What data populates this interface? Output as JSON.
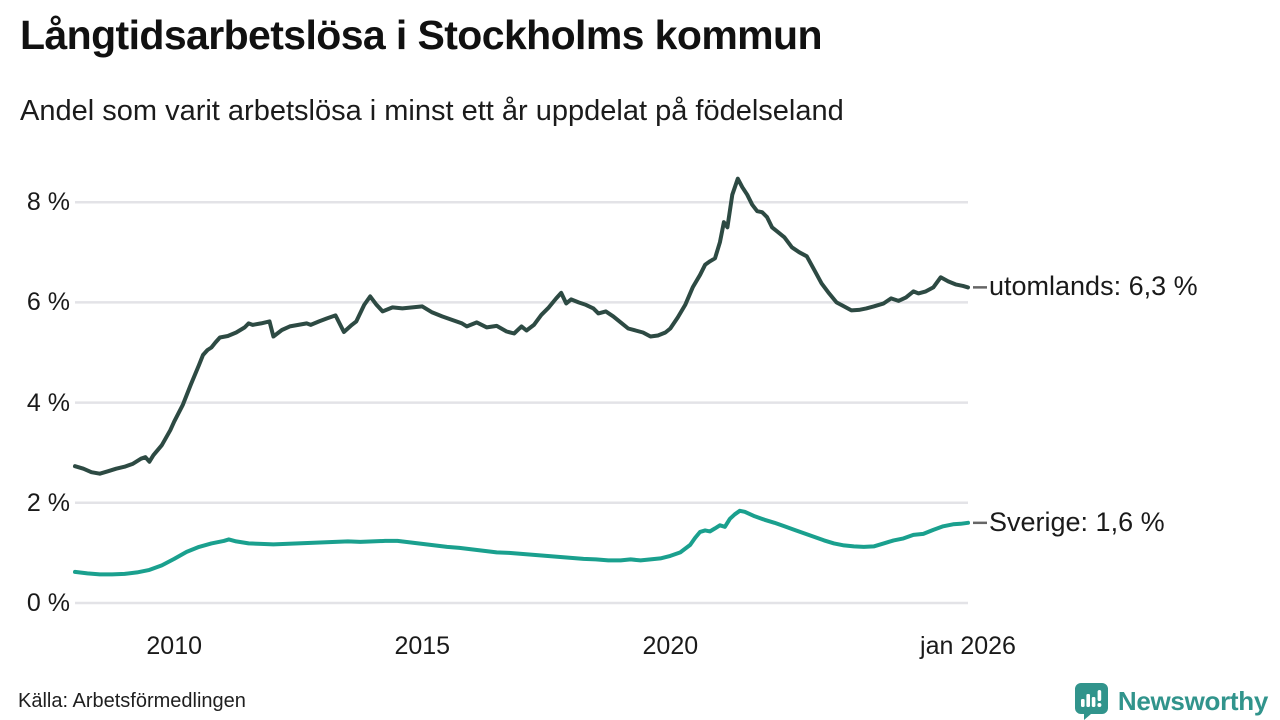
{
  "header": {
    "title": "Långtidsarbetslösa i Stockholms kommun",
    "subtitle": "Andel som varit arbetslösa i minst ett år uppdelat på födelseland"
  },
  "footer": {
    "source": "Källa: Arbetsförmedlingen",
    "brand": "Newsworthy"
  },
  "colors": {
    "utomlands_line": "#2d4a43",
    "sverige_line": "#1aa08e",
    "gridline": "#e3e3e7",
    "label_dash": "#666666",
    "brand_teal": "#31948c",
    "text": "#1a1a1a"
  },
  "chart_data": {
    "type": "line",
    "title": "Långtidsarbetslösa i Stockholms kommun",
    "subtitle": "Andel som varit arbetslösa i minst ett år uppdelat på födelseland",
    "xlabel": "",
    "ylabel": "",
    "grid": "horizontal",
    "legend_position": "right-end-labels",
    "x_range_years": [
      2008,
      2026.08
    ],
    "ylim": [
      0,
      8.6
    ],
    "y_ticks": [
      {
        "value": 0,
        "label": "0 %"
      },
      {
        "value": 2,
        "label": "2 %"
      },
      {
        "value": 4,
        "label": "4 %"
      },
      {
        "value": 6,
        "label": "6 %"
      },
      {
        "value": 8,
        "label": "8 %"
      }
    ],
    "x_ticks": [
      {
        "year": 2010,
        "label": "2010"
      },
      {
        "year": 2015,
        "label": "2015"
      },
      {
        "year": 2020,
        "label": "2020"
      },
      {
        "year": 2026,
        "label": "jan 2026"
      }
    ],
    "series": [
      {
        "name": "utomlands",
        "end_label": "utomlands: 6,3 %",
        "last_value_display": "6,3 %",
        "color": "#2d4a43",
        "points": [
          [
            2008.0,
            2.73
          ],
          [
            2008.17,
            2.68
          ],
          [
            2008.33,
            2.61
          ],
          [
            2008.5,
            2.58
          ],
          [
            2008.67,
            2.63
          ],
          [
            2008.83,
            2.68
          ],
          [
            2009.0,
            2.72
          ],
          [
            2009.17,
            2.78
          ],
          [
            2009.33,
            2.88
          ],
          [
            2009.42,
            2.91
          ],
          [
            2009.5,
            2.82
          ],
          [
            2009.58,
            2.95
          ],
          [
            2009.75,
            3.15
          ],
          [
            2009.92,
            3.45
          ],
          [
            2010.0,
            3.62
          ],
          [
            2010.17,
            3.95
          ],
          [
            2010.33,
            4.35
          ],
          [
            2010.5,
            4.75
          ],
          [
            2010.58,
            4.95
          ],
          [
            2010.67,
            5.05
          ],
          [
            2010.75,
            5.1
          ],
          [
            2010.83,
            5.2
          ],
          [
            2010.92,
            5.3
          ],
          [
            2011.08,
            5.33
          ],
          [
            2011.25,
            5.4
          ],
          [
            2011.42,
            5.5
          ],
          [
            2011.5,
            5.58
          ],
          [
            2011.58,
            5.55
          ],
          [
            2011.75,
            5.58
          ],
          [
            2011.92,
            5.62
          ],
          [
            2012.0,
            5.32
          ],
          [
            2012.17,
            5.45
          ],
          [
            2012.33,
            5.52
          ],
          [
            2012.5,
            5.55
          ],
          [
            2012.67,
            5.58
          ],
          [
            2012.75,
            5.55
          ],
          [
            2012.92,
            5.62
          ],
          [
            2013.08,
            5.68
          ],
          [
            2013.25,
            5.74
          ],
          [
            2013.42,
            5.41
          ],
          [
            2013.58,
            5.55
          ],
          [
            2013.67,
            5.62
          ],
          [
            2013.83,
            5.95
          ],
          [
            2013.95,
            6.12
          ],
          [
            2014.08,
            5.95
          ],
          [
            2014.2,
            5.82
          ],
          [
            2014.4,
            5.9
          ],
          [
            2014.6,
            5.88
          ],
          [
            2014.8,
            5.9
          ],
          [
            2015.0,
            5.92
          ],
          [
            2015.2,
            5.8
          ],
          [
            2015.4,
            5.72
          ],
          [
            2015.6,
            5.65
          ],
          [
            2015.8,
            5.58
          ],
          [
            2015.9,
            5.52
          ],
          [
            2016.1,
            5.6
          ],
          [
            2016.3,
            5.5
          ],
          [
            2016.5,
            5.53
          ],
          [
            2016.7,
            5.42
          ],
          [
            2016.85,
            5.38
          ],
          [
            2017.0,
            5.52
          ],
          [
            2017.1,
            5.44
          ],
          [
            2017.25,
            5.55
          ],
          [
            2017.4,
            5.75
          ],
          [
            2017.55,
            5.9
          ],
          [
            2017.7,
            6.08
          ],
          [
            2017.8,
            6.19
          ],
          [
            2017.9,
            5.98
          ],
          [
            2018.0,
            6.06
          ],
          [
            2018.15,
            6.0
          ],
          [
            2018.3,
            5.95
          ],
          [
            2018.45,
            5.88
          ],
          [
            2018.55,
            5.78
          ],
          [
            2018.7,
            5.82
          ],
          [
            2018.85,
            5.72
          ],
          [
            2019.0,
            5.6
          ],
          [
            2019.15,
            5.48
          ],
          [
            2019.3,
            5.44
          ],
          [
            2019.45,
            5.4
          ],
          [
            2019.6,
            5.32
          ],
          [
            2019.75,
            5.34
          ],
          [
            2019.9,
            5.4
          ],
          [
            2020.0,
            5.48
          ],
          [
            2020.15,
            5.7
          ],
          [
            2020.3,
            5.95
          ],
          [
            2020.45,
            6.3
          ],
          [
            2020.6,
            6.55
          ],
          [
            2020.7,
            6.75
          ],
          [
            2020.8,
            6.82
          ],
          [
            2020.9,
            6.88
          ],
          [
            2021.0,
            7.2
          ],
          [
            2021.08,
            7.6
          ],
          [
            2021.15,
            7.5
          ],
          [
            2021.25,
            8.15
          ],
          [
            2021.36,
            8.47
          ],
          [
            2021.45,
            8.3
          ],
          [
            2021.55,
            8.15
          ],
          [
            2021.65,
            7.95
          ],
          [
            2021.75,
            7.82
          ],
          [
            2021.85,
            7.8
          ],
          [
            2021.95,
            7.7
          ],
          [
            2022.05,
            7.5
          ],
          [
            2022.15,
            7.42
          ],
          [
            2022.3,
            7.3
          ],
          [
            2022.45,
            7.1
          ],
          [
            2022.6,
            7.0
          ],
          [
            2022.75,
            6.92
          ],
          [
            2022.9,
            6.65
          ],
          [
            2023.05,
            6.38
          ],
          [
            2023.2,
            6.18
          ],
          [
            2023.35,
            6.0
          ],
          [
            2023.5,
            5.92
          ],
          [
            2023.65,
            5.84
          ],
          [
            2023.8,
            5.85
          ],
          [
            2023.95,
            5.88
          ],
          [
            2024.1,
            5.92
          ],
          [
            2024.3,
            5.98
          ],
          [
            2024.45,
            6.08
          ],
          [
            2024.6,
            6.03
          ],
          [
            2024.75,
            6.1
          ],
          [
            2024.9,
            6.22
          ],
          [
            2025.0,
            6.18
          ],
          [
            2025.15,
            6.22
          ],
          [
            2025.3,
            6.3
          ],
          [
            2025.45,
            6.5
          ],
          [
            2025.6,
            6.42
          ],
          [
            2025.75,
            6.36
          ],
          [
            2025.9,
            6.33
          ],
          [
            2026.0,
            6.3
          ]
        ]
      },
      {
        "name": "Sverige",
        "end_label": "Sverige: 1,6 %",
        "last_value_display": "1,6 %",
        "color": "#1aa08e",
        "points": [
          [
            2008.0,
            0.62
          ],
          [
            2008.25,
            0.59
          ],
          [
            2008.5,
            0.57
          ],
          [
            2008.75,
            0.57
          ],
          [
            2009.0,
            0.58
          ],
          [
            2009.25,
            0.61
          ],
          [
            2009.5,
            0.66
          ],
          [
            2009.75,
            0.75
          ],
          [
            2010.0,
            0.88
          ],
          [
            2010.25,
            1.02
          ],
          [
            2010.5,
            1.12
          ],
          [
            2010.75,
            1.19
          ],
          [
            2011.0,
            1.24
          ],
          [
            2011.1,
            1.27
          ],
          [
            2011.25,
            1.23
          ],
          [
            2011.5,
            1.19
          ],
          [
            2011.75,
            1.18
          ],
          [
            2012.0,
            1.17
          ],
          [
            2012.25,
            1.18
          ],
          [
            2012.5,
            1.19
          ],
          [
            2012.75,
            1.2
          ],
          [
            2013.0,
            1.21
          ],
          [
            2013.25,
            1.22
          ],
          [
            2013.5,
            1.23
          ],
          [
            2013.75,
            1.22
          ],
          [
            2014.0,
            1.23
          ],
          [
            2014.25,
            1.24
          ],
          [
            2014.5,
            1.24
          ],
          [
            2014.75,
            1.21
          ],
          [
            2015.0,
            1.18
          ],
          [
            2015.25,
            1.15
          ],
          [
            2015.5,
            1.12
          ],
          [
            2015.75,
            1.1
          ],
          [
            2016.0,
            1.07
          ],
          [
            2016.25,
            1.04
          ],
          [
            2016.5,
            1.01
          ],
          [
            2016.75,
            1.0
          ],
          [
            2017.0,
            0.98
          ],
          [
            2017.25,
            0.96
          ],
          [
            2017.5,
            0.94
          ],
          [
            2017.75,
            0.92
          ],
          [
            2018.0,
            0.9
          ],
          [
            2018.25,
            0.88
          ],
          [
            2018.5,
            0.87
          ],
          [
            2018.75,
            0.85
          ],
          [
            2019.0,
            0.85
          ],
          [
            2019.2,
            0.87
          ],
          [
            2019.4,
            0.85
          ],
          [
            2019.6,
            0.87
          ],
          [
            2019.8,
            0.89
          ],
          [
            2020.0,
            0.94
          ],
          [
            2020.2,
            1.01
          ],
          [
            2020.4,
            1.16
          ],
          [
            2020.5,
            1.3
          ],
          [
            2020.6,
            1.42
          ],
          [
            2020.7,
            1.45
          ],
          [
            2020.8,
            1.43
          ],
          [
            2020.9,
            1.49
          ],
          [
            2021.0,
            1.55
          ],
          [
            2021.1,
            1.52
          ],
          [
            2021.2,
            1.68
          ],
          [
            2021.3,
            1.77
          ],
          [
            2021.4,
            1.84
          ],
          [
            2021.5,
            1.82
          ],
          [
            2021.7,
            1.73
          ],
          [
            2021.9,
            1.66
          ],
          [
            2022.1,
            1.6
          ],
          [
            2022.3,
            1.53
          ],
          [
            2022.5,
            1.46
          ],
          [
            2022.7,
            1.39
          ],
          [
            2022.9,
            1.32
          ],
          [
            2023.1,
            1.25
          ],
          [
            2023.3,
            1.19
          ],
          [
            2023.5,
            1.15
          ],
          [
            2023.7,
            1.13
          ],
          [
            2023.9,
            1.12
          ],
          [
            2024.1,
            1.13
          ],
          [
            2024.3,
            1.19
          ],
          [
            2024.5,
            1.25
          ],
          [
            2024.7,
            1.29
          ],
          [
            2024.9,
            1.36
          ],
          [
            2025.1,
            1.38
          ],
          [
            2025.3,
            1.46
          ],
          [
            2025.5,
            1.53
          ],
          [
            2025.7,
            1.57
          ],
          [
            2025.85,
            1.58
          ],
          [
            2026.0,
            1.6
          ]
        ]
      }
    ]
  }
}
